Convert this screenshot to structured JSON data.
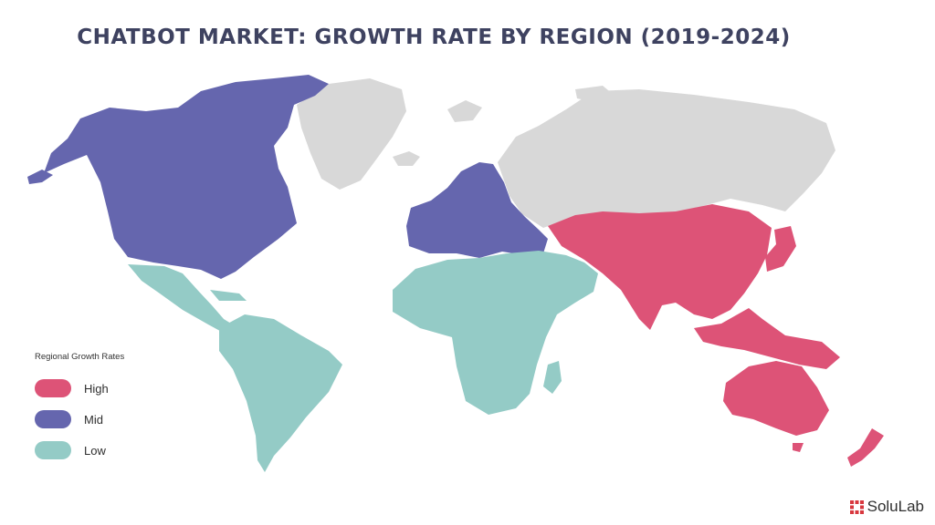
{
  "title": "CHATBOT MARKET: GROWTH RATE BY REGION (2019-2024)",
  "legend": {
    "title": "Regional Growth Rates",
    "items": [
      {
        "label": "High",
        "color": "#dd5377"
      },
      {
        "label": "Mid",
        "color": "#6566ae"
      },
      {
        "label": "Low",
        "color": "#94cbc6"
      }
    ]
  },
  "colors": {
    "no_data": "#d8d8d8",
    "title": "#3e4260",
    "brand_accent": "#d8383f"
  },
  "brand": {
    "name": "SoluLab",
    "icon": "solulab-logo-icon"
  }
}
